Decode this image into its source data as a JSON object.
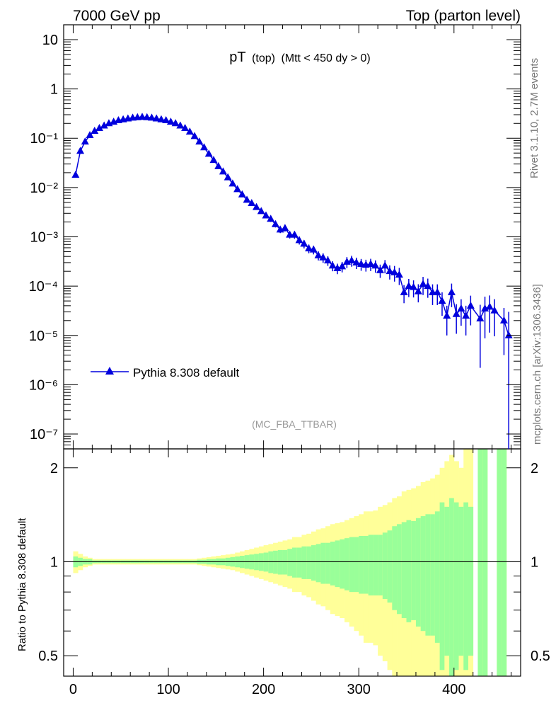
{
  "header": {
    "left": "7000 GeV pp",
    "right": "Top (parton level)"
  },
  "side_labels": {
    "rivet": "Rivet 3.1.10,  2.7M events",
    "mcplots": "mcplots.cern.ch [arXiv:1306.3436]"
  },
  "chart_data": {
    "type": "line",
    "title_main": "pT",
    "title_sub1": "(top)",
    "title_sub2": "(Mtt < 450 dy > 0)",
    "analysis": "(MC_FBA_TTBAR)",
    "legend": {
      "label": "Pythia 8.308 default",
      "position": "middle-left"
    },
    "xlim": [
      -10,
      470
    ],
    "ylim": [
      5e-08,
      20
    ],
    "yscale": "log",
    "x_ticks": [
      "0",
      "100",
      "200",
      "300",
      "400"
    ],
    "y_ticks": [
      "10",
      "1",
      "10⁻¹",
      "10⁻²",
      "10⁻³",
      "10⁻⁴",
      "10⁻⁵",
      "10⁻⁶",
      "10⁻⁷"
    ],
    "colors": {
      "series": "#0000dd",
      "band_inner": "#99ff99",
      "band_outer": "#ffff99"
    },
    "series": [
      {
        "name": "Pythia 8.308 default",
        "x": [
          2.5,
          7.5,
          12.5,
          17.5,
          22.5,
          27.5,
          32.5,
          37.5,
          42.5,
          47.5,
          52.5,
          57.5,
          62.5,
          67.5,
          72.5,
          77.5,
          82.5,
          87.5,
          92.5,
          97.5,
          102.5,
          107.5,
          112.5,
          117.5,
          122.5,
          127.5,
          132.5,
          137.5,
          142.5,
          147.5,
          152.5,
          157.5,
          162.5,
          167.5,
          172.5,
          177.5,
          182.5,
          187.5,
          192.5,
          197.5,
          202.5,
          207.5,
          212.5,
          217.5,
          222.5,
          227.5,
          232.5,
          237.5,
          242.5,
          247.5,
          252.5,
          257.5,
          262.5,
          267.5,
          272.5,
          277.5,
          282.5,
          287.5,
          292.5,
          297.5,
          302.5,
          307.5,
          312.5,
          317.5,
          322.5,
          327.5,
          332.5,
          337.5,
          342.5,
          347.5,
          352.5,
          357.5,
          362.5,
          367.5,
          372.5,
          377.5,
          382.5,
          387.5,
          392.5,
          397.5,
          402.5,
          407.5,
          412.5,
          417.5,
          427.5,
          432.5,
          437.5,
          442.5,
          452.5,
          457.5
        ],
        "y": [
          0.018,
          0.055,
          0.085,
          0.115,
          0.14,
          0.16,
          0.18,
          0.2,
          0.215,
          0.23,
          0.24,
          0.25,
          0.26,
          0.265,
          0.27,
          0.265,
          0.26,
          0.25,
          0.24,
          0.23,
          0.215,
          0.2,
          0.18,
          0.16,
          0.135,
          0.11,
          0.085,
          0.065,
          0.048,
          0.036,
          0.027,
          0.021,
          0.016,
          0.012,
          0.0092,
          0.0072,
          0.0056,
          0.0048,
          0.004,
          0.0033,
          0.0027,
          0.0023,
          0.0018,
          0.0014,
          0.0015,
          0.0011,
          0.0011,
          0.00085,
          0.00072,
          0.00058,
          0.00055,
          0.00042,
          0.00038,
          0.00033,
          0.00026,
          0.00023,
          0.00025,
          0.00031,
          0.00033,
          0.0003,
          0.00028,
          0.00027,
          0.00028,
          0.00026,
          0.00021,
          0.00026,
          0.0002,
          0.00019,
          0.00017,
          7.5e-05,
          0.0001,
          9.5e-05,
          7.8e-05,
          0.00011,
          0.0001,
          7.5e-05,
          7.5e-05,
          5e-05,
          2.5e-05,
          7.5e-05,
          2.7e-05,
          3.5e-05,
          2.5e-05,
          4e-05,
          2.2e-05,
          3.5e-05,
          3.8e-05,
          3.2e-05,
          2e-05,
          1e-05
        ],
        "err_rel": [
          0.05,
          0.04,
          0.03,
          0.03,
          0.03,
          0.03,
          0.03,
          0.03,
          0.03,
          0.03,
          0.03,
          0.03,
          0.03,
          0.03,
          0.03,
          0.03,
          0.03,
          0.03,
          0.03,
          0.03,
          0.03,
          0.03,
          0.03,
          0.03,
          0.03,
          0.03,
          0.03,
          0.04,
          0.04,
          0.05,
          0.05,
          0.06,
          0.06,
          0.07,
          0.08,
          0.08,
          0.09,
          0.1,
          0.1,
          0.11,
          0.12,
          0.13,
          0.14,
          0.15,
          0.15,
          0.16,
          0.17,
          0.18,
          0.19,
          0.2,
          0.2,
          0.21,
          0.22,
          0.22,
          0.23,
          0.24,
          0.24,
          0.25,
          0.25,
          0.26,
          0.27,
          0.27,
          0.28,
          0.28,
          0.3,
          0.3,
          0.32,
          0.35,
          0.38,
          0.4,
          0.4,
          0.38,
          0.4,
          0.4,
          0.42,
          0.45,
          0.45,
          0.5,
          0.6,
          0.5,
          0.6,
          0.55,
          0.6,
          0.6,
          0.9,
          0.75,
          0.7,
          0.7,
          0.8,
          2.0
        ]
      }
    ],
    "ratio": {
      "ylabel": "Ratio to Pythia 8.308 default",
      "ylim": [
        0.43,
        2.3
      ],
      "y_ticks": [
        "0.5",
        "1",
        "2"
      ],
      "y_tick_values": [
        0.5,
        1,
        2
      ],
      "reference": 1,
      "band_x_edges": [
        0,
        5,
        10,
        15,
        20,
        25,
        30,
        35,
        40,
        45,
        50,
        55,
        60,
        65,
        70,
        75,
        80,
        85,
        90,
        95,
        100,
        105,
        110,
        115,
        120,
        125,
        130,
        135,
        140,
        145,
        150,
        155,
        160,
        165,
        170,
        175,
        180,
        185,
        190,
        195,
        200,
        205,
        210,
        215,
        220,
        225,
        230,
        235,
        240,
        245,
        250,
        255,
        260,
        265,
        270,
        275,
        280,
        285,
        290,
        295,
        300,
        305,
        310,
        315,
        320,
        325,
        330,
        335,
        340,
        345,
        350,
        355,
        360,
        365,
        370,
        375,
        380,
        385,
        390,
        395,
        400,
        405,
        410,
        415,
        420,
        425,
        430,
        435,
        440,
        445,
        450,
        455,
        460,
        465
      ],
      "inner_half": [
        0.04,
        0.03,
        0.02,
        0.02,
        0.01,
        0.01,
        0.01,
        0.01,
        0.01,
        0.01,
        0.01,
        0.01,
        0.01,
        0.01,
        0.01,
        0.01,
        0.01,
        0.01,
        0.01,
        0.01,
        0.01,
        0.01,
        0.01,
        0.01,
        0.01,
        0.01,
        0.015,
        0.015,
        0.02,
        0.02,
        0.025,
        0.025,
        0.03,
        0.035,
        0.04,
        0.045,
        0.05,
        0.055,
        0.06,
        0.065,
        0.07,
        0.08,
        0.085,
        0.09,
        0.09,
        0.1,
        0.11,
        0.11,
        0.12,
        0.12,
        0.13,
        0.14,
        0.15,
        0.15,
        0.16,
        0.17,
        0.18,
        0.19,
        0.2,
        0.2,
        0.21,
        0.21,
        0.22,
        0.22,
        0.22,
        0.24,
        0.26,
        0.3,
        0.32,
        0.34,
        0.36,
        0.35,
        0.38,
        0.4,
        0.42,
        0.42,
        0.45,
        0.55,
        0.5,
        0.6,
        0.55,
        0.5,
        0.55,
        0.5,
        0.0,
        1.5,
        1.5,
        0.0,
        0.0,
        1.5,
        1.5,
        0.0,
        0.0
      ],
      "outer_half": [
        0.08,
        0.06,
        0.04,
        0.03,
        0.02,
        0.02,
        0.02,
        0.02,
        0.02,
        0.02,
        0.02,
        0.02,
        0.02,
        0.02,
        0.02,
        0.02,
        0.02,
        0.02,
        0.02,
        0.02,
        0.02,
        0.02,
        0.02,
        0.02,
        0.02,
        0.02,
        0.025,
        0.03,
        0.035,
        0.04,
        0.045,
        0.05,
        0.055,
        0.06,
        0.07,
        0.08,
        0.09,
        0.1,
        0.11,
        0.12,
        0.13,
        0.14,
        0.15,
        0.16,
        0.17,
        0.18,
        0.2,
        0.2,
        0.22,
        0.23,
        0.25,
        0.27,
        0.28,
        0.3,
        0.32,
        0.33,
        0.34,
        0.36,
        0.38,
        0.4,
        0.42,
        0.45,
        0.45,
        0.46,
        0.5,
        0.52,
        0.55,
        0.6,
        0.62,
        0.68,
        0.7,
        0.72,
        0.75,
        0.8,
        0.82,
        0.85,
        0.9,
        1.0,
        1.1,
        1.2,
        1.1,
        1.0,
        1.3,
        1.4,
        0.0,
        2.0,
        2.0,
        0.0,
        0.0,
        2.0,
        2.0,
        0.0,
        0.0
      ]
    }
  }
}
